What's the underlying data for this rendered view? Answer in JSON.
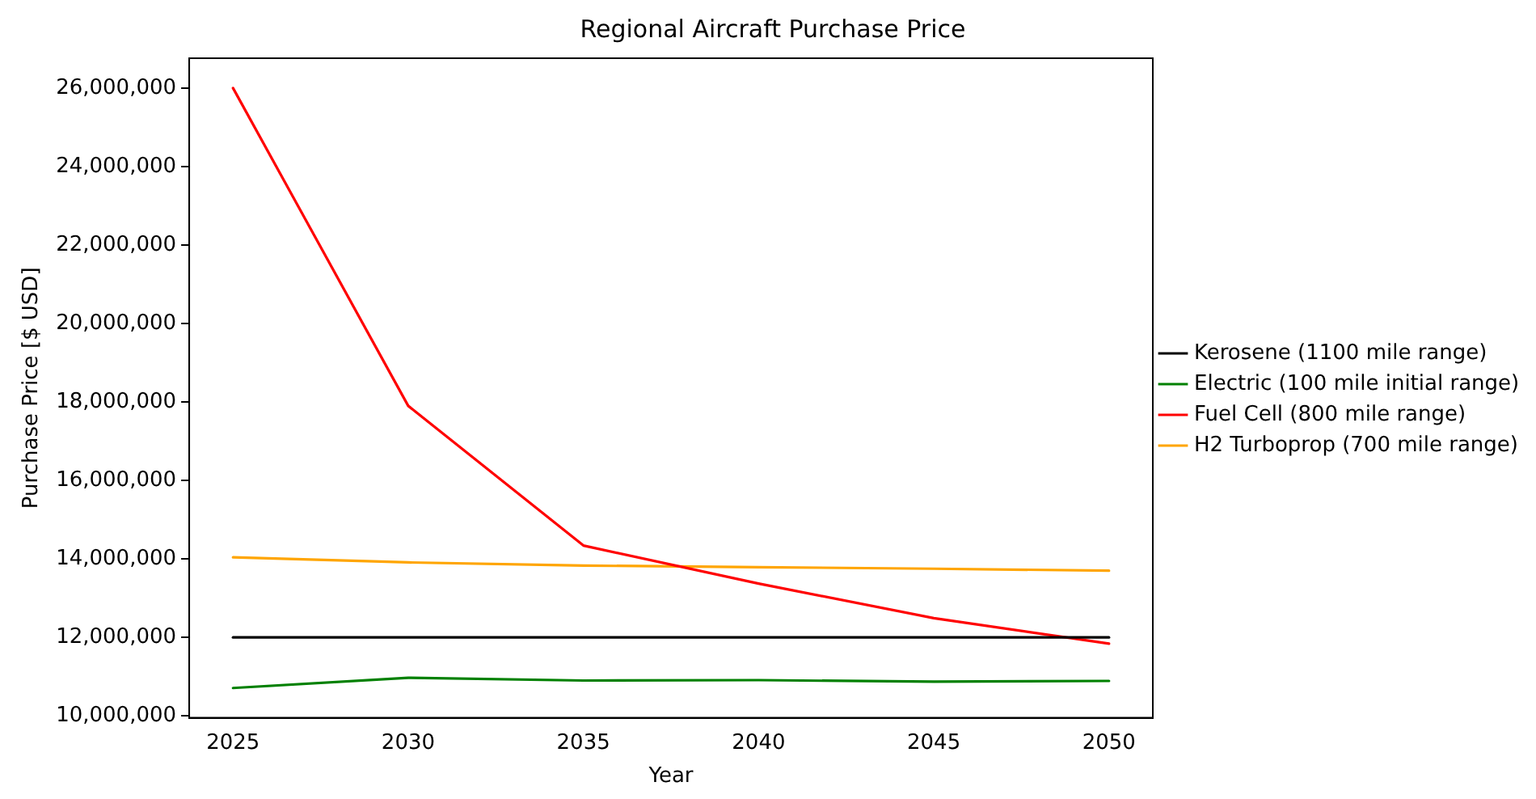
{
  "chart_data": {
    "type": "line",
    "title": "Regional Aircraft Purchase Price",
    "xlabel": "Year",
    "ylabel": "Purchase Price [$ USD]",
    "x": [
      2025,
      2030,
      2035,
      2040,
      2045,
      2050
    ],
    "series": [
      {
        "name": "Kerosene (1100 mile range)",
        "color": "#000000",
        "values": [
          12000000,
          12000000,
          12000000,
          12000000,
          12000000,
          12000000
        ]
      },
      {
        "name": "Electric (100 mile initial range)",
        "color": "#008000",
        "values": [
          10710000,
          10970000,
          10900000,
          10910000,
          10870000,
          10890000
        ]
      },
      {
        "name": "Fuel Cell (800 mile range)",
        "color": "#ff0000",
        "values": [
          26000000,
          17900000,
          14340000,
          13370000,
          12490000,
          11840000
        ]
      },
      {
        "name": "H2 Turboprop (700 mile range)",
        "color": "#ffa500",
        "values": [
          14040000,
          13910000,
          13830000,
          13790000,
          13750000,
          13700000
        ]
      }
    ],
    "xlim": [
      2023.75,
      2051.25
    ],
    "xticks": [
      2025,
      2030,
      2035,
      2040,
      2045,
      2050
    ],
    "ylim": [
      9950000,
      26760000
    ],
    "yticks": [
      {
        "value": 10000000,
        "label": "10,000,000"
      },
      {
        "value": 12000000,
        "label": "12,000,000"
      },
      {
        "value": 14000000,
        "label": "14,000,000"
      },
      {
        "value": 16000000,
        "label": "16,000,000"
      },
      {
        "value": 18000000,
        "label": "18,000,000"
      },
      {
        "value": 20000000,
        "label": "20,000,000"
      },
      {
        "value": 22000000,
        "label": "22,000,000"
      },
      {
        "value": 24000000,
        "label": "24,000,000"
      },
      {
        "value": 26000000,
        "label": "26,000,000"
      }
    ],
    "grid": false,
    "legend": "right",
    "marker": "none",
    "line_style": "solid"
  }
}
